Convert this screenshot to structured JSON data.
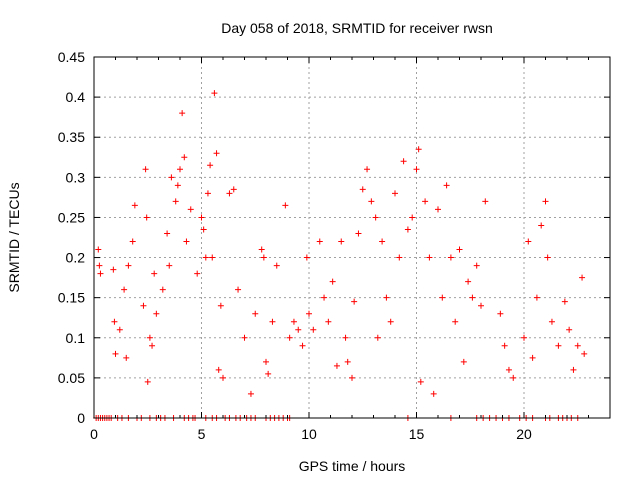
{
  "chart_data": {
    "type": "scatter",
    "title": "Day 058 of 2018, SRMTID for receiver rwsn",
    "xlabel": "GPS time / hours",
    "ylabel": "SRMTID / TECUs",
    "xlim": [
      0,
      24
    ],
    "ylim": [
      0,
      0.45
    ],
    "xticks": [
      0,
      5,
      10,
      15,
      20
    ],
    "yticks": [
      0,
      0.05,
      0.1,
      0.15,
      0.2,
      0.25,
      0.3,
      0.35,
      0.4,
      0.45
    ],
    "xtick_labels": [
      "0",
      "5",
      "10",
      "15",
      "20"
    ],
    "ytick_labels": [
      "0",
      "0.05",
      "0.1",
      "0.15",
      "0.2",
      "0.25",
      "0.3",
      "0.35",
      "0.4",
      "0.45"
    ],
    "grid": true,
    "marker": "+",
    "color": "#ff0000",
    "series": [
      {
        "name": "SRMTID",
        "points": [
          [
            0.1,
            0.0
          ],
          [
            0.2,
            0.0
          ],
          [
            0.3,
            0.0
          ],
          [
            0.4,
            0.0
          ],
          [
            0.5,
            0.0
          ],
          [
            0.6,
            0.0
          ],
          [
            0.7,
            0.0
          ],
          [
            0.8,
            0.0
          ],
          [
            1.1,
            0.0
          ],
          [
            1.3,
            0.0
          ],
          [
            1.6,
            0.0
          ],
          [
            2.0,
            0.0
          ],
          [
            2.2,
            0.0
          ],
          [
            2.6,
            0.0
          ],
          [
            2.9,
            0.0
          ],
          [
            3.1,
            0.0
          ],
          [
            3.3,
            0.0
          ],
          [
            3.7,
            0.0
          ],
          [
            4.2,
            0.0
          ],
          [
            4.4,
            0.0
          ],
          [
            4.6,
            0.0
          ],
          [
            4.7,
            0.0
          ],
          [
            5.2,
            0.0
          ],
          [
            5.5,
            0.0
          ],
          [
            5.7,
            0.0
          ],
          [
            6.1,
            0.0
          ],
          [
            6.3,
            0.0
          ],
          [
            6.6,
            0.0
          ],
          [
            6.8,
            0.0
          ],
          [
            7.1,
            0.0
          ],
          [
            7.3,
            0.0
          ],
          [
            7.5,
            0.0
          ],
          [
            8.0,
            0.0
          ],
          [
            8.2,
            0.0
          ],
          [
            8.4,
            0.0
          ],
          [
            8.6,
            0.0
          ],
          [
            8.8,
            0.0
          ],
          [
            9.0,
            0.0
          ],
          [
            9.1,
            0.0
          ],
          [
            14.6,
            0.0
          ],
          [
            16.6,
            0.0
          ],
          [
            17.8,
            0.0
          ],
          [
            18.1,
            0.0
          ],
          [
            18.4,
            0.0
          ],
          [
            18.7,
            0.0
          ],
          [
            19.0,
            0.0
          ],
          [
            19.3,
            0.0
          ],
          [
            19.8,
            0.0
          ],
          [
            20.1,
            0.0
          ],
          [
            20.4,
            0.0
          ],
          [
            21.0,
            0.0
          ],
          [
            21.2,
            0.0
          ],
          [
            21.6,
            0.0
          ],
          [
            21.8,
            0.0
          ],
          [
            22.0,
            0.0
          ],
          [
            22.2,
            0.0
          ],
          [
            22.5,
            0.0
          ],
          [
            0.2,
            0.21
          ],
          [
            0.25,
            0.19
          ],
          [
            0.3,
            0.18
          ],
          [
            0.9,
            0.185
          ],
          [
            0.95,
            0.12
          ],
          [
            1.0,
            0.08
          ],
          [
            1.2,
            0.11
          ],
          [
            1.4,
            0.16
          ],
          [
            1.5,
            0.075
          ],
          [
            1.6,
            0.19
          ],
          [
            1.8,
            0.22
          ],
          [
            1.9,
            0.265
          ],
          [
            2.3,
            0.14
          ],
          [
            2.4,
            0.31
          ],
          [
            2.45,
            0.25
          ],
          [
            2.5,
            0.045
          ],
          [
            2.6,
            0.1
          ],
          [
            2.7,
            0.09
          ],
          [
            2.8,
            0.18
          ],
          [
            2.9,
            0.13
          ],
          [
            3.2,
            0.16
          ],
          [
            3.4,
            0.23
          ],
          [
            3.5,
            0.19
          ],
          [
            3.6,
            0.3
          ],
          [
            3.8,
            0.27
          ],
          [
            3.9,
            0.29
          ],
          [
            4.0,
            0.31
          ],
          [
            4.1,
            0.38
          ],
          [
            4.2,
            0.325
          ],
          [
            4.3,
            0.22
          ],
          [
            4.5,
            0.26
          ],
          [
            4.8,
            0.18
          ],
          [
            5.0,
            0.25
          ],
          [
            5.1,
            0.235
          ],
          [
            5.2,
            0.2
          ],
          [
            5.3,
            0.28
          ],
          [
            5.4,
            0.315
          ],
          [
            5.5,
            0.2
          ],
          [
            5.6,
            0.405
          ],
          [
            5.7,
            0.33
          ],
          [
            5.8,
            0.06
          ],
          [
            5.9,
            0.14
          ],
          [
            6.0,
            0.05
          ],
          [
            6.3,
            0.28
          ],
          [
            6.5,
            0.285
          ],
          [
            6.7,
            0.16
          ],
          [
            7.0,
            0.1
          ],
          [
            7.3,
            0.03
          ],
          [
            7.5,
            0.13
          ],
          [
            7.8,
            0.21
          ],
          [
            7.9,
            0.2
          ],
          [
            8.0,
            0.07
          ],
          [
            8.1,
            0.055
          ],
          [
            8.3,
            0.12
          ],
          [
            8.5,
            0.19
          ],
          [
            8.9,
            0.265
          ],
          [
            9.1,
            0.1
          ],
          [
            9.3,
            0.12
          ],
          [
            9.5,
            0.11
          ],
          [
            9.7,
            0.09
          ],
          [
            9.9,
            0.2
          ],
          [
            10.0,
            0.13
          ],
          [
            10.2,
            0.11
          ],
          [
            10.5,
            0.22
          ],
          [
            10.7,
            0.15
          ],
          [
            10.9,
            0.12
          ],
          [
            11.1,
            0.17
          ],
          [
            11.3,
            0.065
          ],
          [
            11.5,
            0.22
          ],
          [
            11.7,
            0.1
          ],
          [
            11.8,
            0.07
          ],
          [
            12.0,
            0.05
          ],
          [
            12.1,
            0.145
          ],
          [
            12.3,
            0.23
          ],
          [
            12.5,
            0.285
          ],
          [
            12.7,
            0.31
          ],
          [
            12.9,
            0.27
          ],
          [
            13.1,
            0.25
          ],
          [
            13.2,
            0.1
          ],
          [
            13.4,
            0.22
          ],
          [
            13.6,
            0.15
          ],
          [
            13.8,
            0.12
          ],
          [
            14.0,
            0.28
          ],
          [
            14.2,
            0.2
          ],
          [
            14.4,
            0.32
          ],
          [
            14.6,
            0.235
          ],
          [
            14.8,
            0.25
          ],
          [
            15.0,
            0.31
          ],
          [
            15.1,
            0.335
          ],
          [
            15.2,
            0.045
          ],
          [
            15.4,
            0.27
          ],
          [
            15.6,
            0.2
          ],
          [
            15.8,
            0.03
          ],
          [
            16.0,
            0.26
          ],
          [
            16.2,
            0.15
          ],
          [
            16.4,
            0.29
          ],
          [
            16.6,
            0.2
          ],
          [
            16.8,
            0.12
          ],
          [
            17.0,
            0.21
          ],
          [
            17.2,
            0.07
          ],
          [
            17.4,
            0.17
          ],
          [
            17.6,
            0.15
          ],
          [
            17.8,
            0.19
          ],
          [
            18.0,
            0.14
          ],
          [
            18.2,
            0.27
          ],
          [
            18.9,
            0.13
          ],
          [
            19.1,
            0.09
          ],
          [
            19.3,
            0.06
          ],
          [
            19.5,
            0.05
          ],
          [
            20.0,
            0.1
          ],
          [
            20.2,
            0.22
          ],
          [
            20.4,
            0.075
          ],
          [
            20.6,
            0.15
          ],
          [
            20.8,
            0.24
          ],
          [
            21.0,
            0.27
          ],
          [
            21.1,
            0.2
          ],
          [
            21.3,
            0.12
          ],
          [
            21.6,
            0.09
          ],
          [
            21.9,
            0.145
          ],
          [
            22.1,
            0.11
          ],
          [
            22.3,
            0.06
          ],
          [
            22.5,
            0.09
          ],
          [
            22.7,
            0.175
          ],
          [
            22.8,
            0.08
          ]
        ]
      }
    ]
  }
}
